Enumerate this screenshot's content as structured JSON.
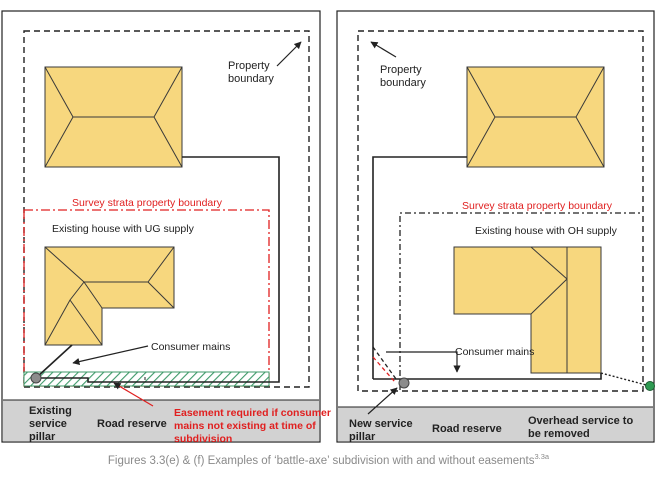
{
  "left_panel": {
    "property_boundary": [
      "Property",
      "boundary"
    ],
    "survey_strata": "Survey strata property boundary",
    "house_label": "Existing house with UG supply",
    "consumer_mains": "Consumer mains",
    "pillar_label": [
      "Existing",
      "service",
      "pillar"
    ],
    "road_reserve": "Road reserve",
    "easement_note": [
      "Easement required if consumer",
      "mains not existing at time of",
      "subdivision"
    ]
  },
  "right_panel": {
    "property_boundary": [
      "Property",
      "boundary"
    ],
    "survey_strata": "Survey strata property boundary",
    "house_label": "Existing house with OH supply",
    "consumer_mains": "Consumer mains",
    "pillar_label": [
      "New service",
      "pillar"
    ],
    "road_reserve": "Road reserve",
    "overhead_note": [
      "Overhead service to",
      "be removed"
    ]
  },
  "caption": {
    "text": "Figures 3.3(e) & (f) Examples of ‘battle-axe’ subdivision with and without easements",
    "sup": "3.3a"
  },
  "colors": {
    "roof_fill": "#f7d77e",
    "roof_stroke": "#3a3a3a",
    "strata_red": "#e02020",
    "easement_green": "#3f9a6a",
    "road_grey": "#d2d2d2",
    "pillar_grey": "#8c8c8c",
    "pole_green": "#2e9a52"
  }
}
